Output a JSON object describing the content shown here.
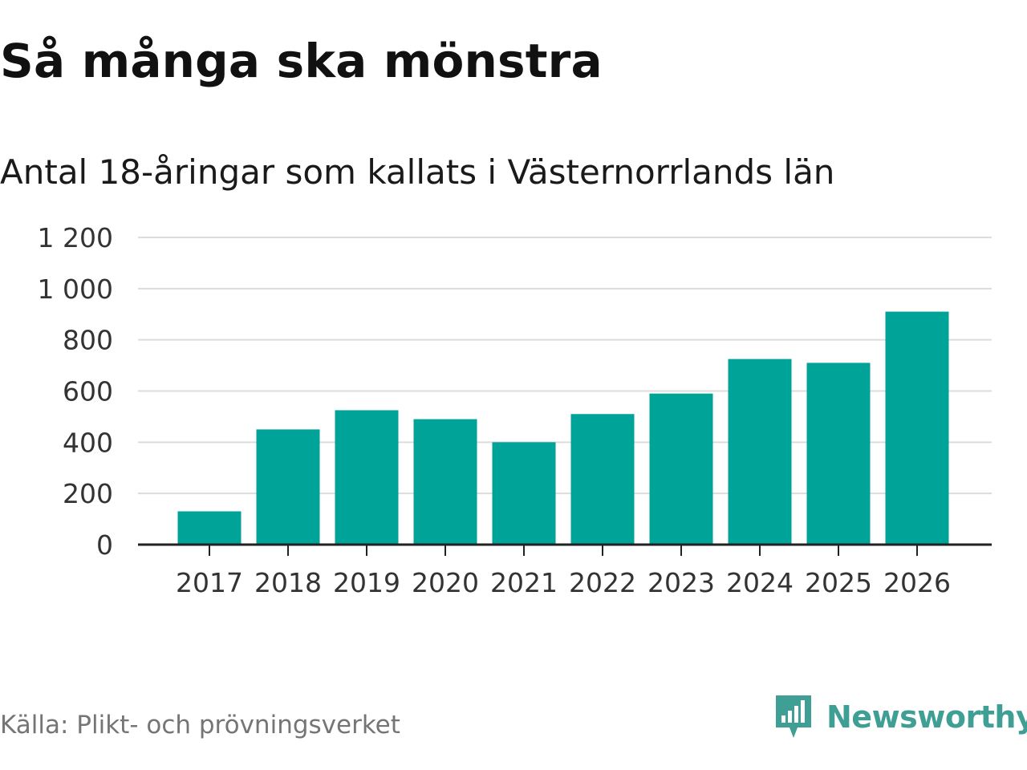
{
  "header": {
    "title": "Så många ska mönstra",
    "subtitle": "Antal 18-åringar som kallats i Västernorrlands län"
  },
  "footer": {
    "source": "Källa: Plikt- och prövningsverket",
    "brand": "Newsworthy",
    "brand_icon": "bar-chart-speech-bubble-icon"
  },
  "colors": {
    "bar": "#00a398",
    "brand": "#3f9f94",
    "grid": "#dcdcdc",
    "axis": "#222222",
    "tick_text": "#333333"
  },
  "chart_data": {
    "type": "bar",
    "title": "Så många ska mönstra",
    "subtitle": "Antal 18-åringar som kallats i Västernorrlands län",
    "xlabel": "",
    "ylabel": "",
    "categories": [
      "2017",
      "2018",
      "2019",
      "2020",
      "2021",
      "2022",
      "2023",
      "2024",
      "2025",
      "2026"
    ],
    "values": [
      130,
      450,
      525,
      490,
      400,
      510,
      590,
      725,
      710,
      910
    ],
    "ylim": [
      0,
      1200
    ],
    "yticks": [
      0,
      200,
      400,
      600,
      800,
      1000,
      1200
    ],
    "ytick_labels": [
      "0",
      "200",
      "400",
      "600",
      "800",
      "1 000",
      "1 200"
    ],
    "grid": true,
    "legend": "none"
  }
}
